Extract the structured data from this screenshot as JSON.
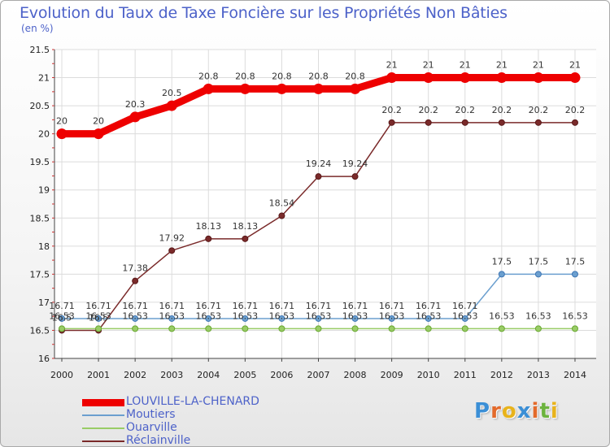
{
  "header": {
    "title": "Evolution du Taux de Taxe Foncière sur les Propriétés Non Bâties",
    "unit": "(en %)"
  },
  "logo": {
    "text": "Proxiti",
    "letters": [
      "P",
      "r",
      "o",
      "x",
      "i",
      "t",
      "i"
    ],
    "colors": [
      "#3b8fd6",
      "#e36a2b",
      "#e8b31c",
      "#3b8fd6",
      "#e36a2b",
      "#6cb33e",
      "#e8b31c"
    ]
  },
  "chart_data": {
    "type": "line",
    "title": "Evolution du Taux de Taxe Foncière sur les Propriétés Non Bâties",
    "ylabel": "(en %)",
    "xlabel": "",
    "ylim": [
      16,
      21.5
    ],
    "yticks": [
      16,
      16.5,
      17,
      17.5,
      18,
      18.5,
      19,
      19.5,
      20,
      20.5,
      21,
      21.5
    ],
    "categories": [
      "2000",
      "2001",
      "2002",
      "2003",
      "2004",
      "2005",
      "2006",
      "2007",
      "2008",
      "2009",
      "2010",
      "2011",
      "2012",
      "2013",
      "2014"
    ],
    "series": [
      {
        "name": "LOUVILLE-LA-CHENARD",
        "color": "#ee0000",
        "values": [
          20,
          20,
          20.3,
          20.5,
          20.8,
          20.8,
          20.8,
          20.8,
          20.8,
          21,
          21,
          21,
          21,
          21,
          21
        ],
        "labels": [
          "20",
          "20",
          "20.3",
          "20.5",
          "20.8",
          "20.8",
          "20.8",
          "20.8",
          "20.8",
          "21",
          "21",
          "21",
          "21",
          "21",
          "21"
        ]
      },
      {
        "name": "Moutiers",
        "color": "#6b9fcf",
        "values": [
          16.71,
          16.71,
          16.71,
          16.71,
          16.71,
          16.71,
          16.71,
          16.71,
          16.71,
          16.71,
          16.71,
          16.71,
          17.5,
          17.5,
          17.5
        ],
        "labels": [
          "16.71",
          "16.71",
          "16.71",
          "16.71",
          "16.71",
          "16.71",
          "16.71",
          "16.71",
          "16.71",
          "16.71",
          "16.71",
          "16.71",
          "17.5",
          "17.5",
          "17.5"
        ]
      },
      {
        "name": "Ouarville",
        "color": "#99cc66",
        "values": [
          16.53,
          16.53,
          16.53,
          16.53,
          16.53,
          16.53,
          16.53,
          16.53,
          16.53,
          16.53,
          16.53,
          16.53,
          16.53,
          16.53,
          16.53
        ],
        "labels": [
          "16.53",
          "16.53",
          "16.53",
          "16.53",
          "16.53",
          "16.53",
          "16.53",
          "16.53",
          "16.53",
          "16.53",
          "16.53",
          "16.53",
          "16.53",
          "16.53",
          "16.53"
        ]
      },
      {
        "name": "Réclainville",
        "color": "#7a2a2a",
        "values": [
          16.5,
          16.5,
          17.38,
          17.92,
          18.13,
          18.13,
          18.54,
          19.24,
          19.24,
          20.2,
          20.2,
          20.2,
          20.2,
          20.2,
          20.2
        ],
        "labels": [
          "16.5",
          "16.5",
          "17.38",
          "17.92",
          "18.13",
          "18.13",
          "18.54",
          "19.24",
          "19.24",
          "20.2",
          "20.2",
          "20.2",
          "20.2",
          "20.2",
          "20.2"
        ]
      }
    ]
  }
}
